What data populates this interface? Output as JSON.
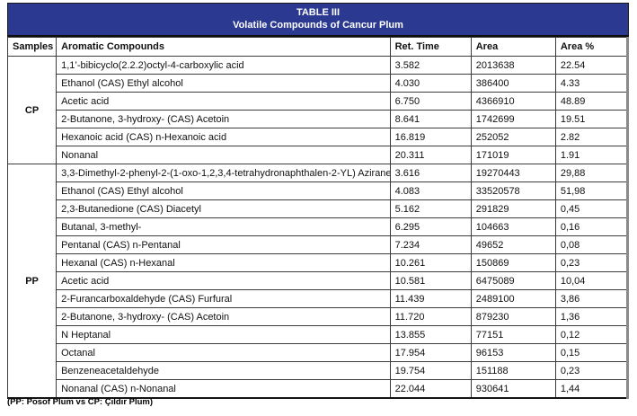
{
  "table": {
    "title_line1": "TABLE III",
    "title_line2": "Volatile Compounds of Cancur Plum",
    "columns": [
      "Samples",
      "Aromatic Compounds",
      "Ret. Time",
      "Area",
      "Area %"
    ],
    "groups": [
      {
        "sample": "CP",
        "rows": [
          {
            "compound": "1,1’-bibicyclo(2.2.2)octyl-4-carboxylic acid",
            "ret_time": "3.582",
            "area": "2013638",
            "area_pct": "22.54"
          },
          {
            "compound": "Ethanol (CAS) Ethyl alcohol",
            "ret_time": "4.030",
            "area": "386400",
            "area_pct": "4.33"
          },
          {
            "compound": "Acetic acid",
            "ret_time": "6.750",
            "area": "4366910",
            "area_pct": "48.89"
          },
          {
            "compound": "2-Butanone, 3-hydroxy- (CAS) Acetoin",
            "ret_time": "8.641",
            "area": "1742699",
            "area_pct": "19.51"
          },
          {
            "compound": "Hexanoic acid (CAS) n-Hexanoic acid",
            "ret_time": "16.819",
            "area": "252052",
            "area_pct": "2.82"
          },
          {
            "compound": "Nonanal",
            "ret_time": "20.311",
            "area": "171019",
            "area_pct": "1.91"
          }
        ]
      },
      {
        "sample": "PP",
        "rows": [
          {
            "compound": "3,3-Dimethyl-2-phenyl-2-(1-oxo-1,2,3,4-tetrahydronaphthalen-2-YL) Azirane",
            "ret_time": "3.616",
            "area": "19270443",
            "area_pct": "29,88"
          },
          {
            "compound": "Ethanol (CAS) Ethyl alcohol",
            "ret_time": "4.083",
            "area": "33520578",
            "area_pct": "51,98"
          },
          {
            "compound": "2,3-Butanedione (CAS) Diacetyl",
            "ret_time": "5.162",
            "area": "291829",
            "area_pct": "0,45"
          },
          {
            "compound": "Butanal, 3-methyl-",
            "ret_time": "6.295",
            "area": "104663",
            "area_pct": "0,16"
          },
          {
            "compound": "Pentanal (CAS) n-Pentanal",
            "ret_time": "7.234",
            "area": "49652",
            "area_pct": "0,08"
          },
          {
            "compound": "Hexanal (CAS) n-Hexanal",
            "ret_time": "10.261",
            "area": "150869",
            "area_pct": "0,23"
          },
          {
            "compound": "Acetic acid",
            "ret_time": "10.581",
            "area": "6475089",
            "area_pct": "10,04"
          },
          {
            "compound": "2-Furancarboxaldehyde (CAS) Furfural",
            "ret_time": "11.439",
            "area": "2489100",
            "area_pct": "3,86"
          },
          {
            "compound": "2-Butanone, 3-hydroxy- (CAS) Acetoin",
            "ret_time": "11.720",
            "area": "879230",
            "area_pct": "1,36"
          },
          {
            "compound": "N Heptanal",
            "ret_time": "13.855",
            "area": "77151",
            "area_pct": "0,12"
          },
          {
            "compound": "Octanal",
            "ret_time": "17.954",
            "area": "96153",
            "area_pct": "0,15"
          },
          {
            "compound": "Benzeneacetaldehyde",
            "ret_time": "19.754",
            "area": "151188",
            "area_pct": "0,23"
          },
          {
            "compound": "Nonanal (CAS) n-Nonanal",
            "ret_time": "22.044",
            "area": "930641",
            "area_pct": "1,44"
          }
        ]
      }
    ],
    "footnote": "(PP: Posof Plum vs CP: Çıldır Plum)"
  },
  "colors": {
    "caption_bg": "#2B3990",
    "caption_text": "#FFFFFF",
    "grid_border": "#3C3C3C",
    "right_edge": "#8A8A8A"
  },
  "chart_data": {
    "type": "table",
    "title": "TABLE III — Volatile Compounds of Cancur Plum",
    "columns": [
      "Samples",
      "Aromatic Compounds",
      "Ret. Time",
      "Area",
      "Area %"
    ]
  }
}
